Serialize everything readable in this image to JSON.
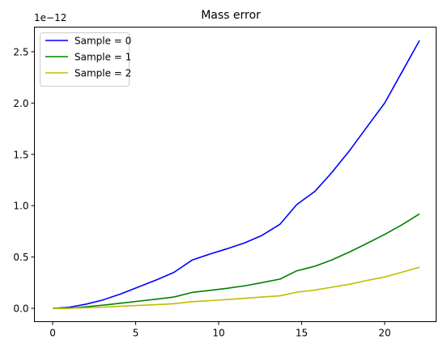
{
  "chart_data": {
    "type": "line",
    "title": "Mass error",
    "xlabel": "",
    "ylabel": "",
    "offset_text": "1e−12",
    "xlim": [
      -1.1,
      23.1
    ],
    "ylim": [
      -0.13,
      2.74
    ],
    "x_ticks": [
      0,
      5,
      10,
      15,
      20
    ],
    "x_tick_labels": [
      "0",
      "5",
      "10",
      "15",
      "20"
    ],
    "y_ticks": [
      0.0,
      0.5,
      1.0,
      1.5,
      2.0,
      2.5
    ],
    "y_tick_labels": [
      "0.0",
      "0.5",
      "1.0",
      "1.5",
      "2.0",
      "2.5"
    ],
    "grid": false,
    "legend_position": "upper-left",
    "x": [
      0,
      1,
      2,
      3,
      4.1,
      5.2,
      6.3,
      7.3,
      8.4,
      9.5,
      10.5,
      11.6,
      12.6,
      13.7,
      14.7,
      15.8,
      16.8,
      17.9,
      18.9,
      20.0,
      21.0,
      22.1
    ],
    "series": [
      {
        "name": "Sample = 0",
        "color": "#0000ff",
        "values": [
          0.0,
          0.01,
          0.04,
          0.08,
          0.14,
          0.21,
          0.28,
          0.35,
          0.47,
          0.53,
          0.58,
          0.64,
          0.71,
          0.82,
          1.01,
          1.14,
          1.32,
          1.54,
          1.76,
          2.0,
          2.29,
          2.61
        ]
      },
      {
        "name": "Sample = 1",
        "color": "#008000",
        "values": [
          0.0,
          0.0,
          0.015,
          0.03,
          0.05,
          0.07,
          0.09,
          0.11,
          0.155,
          0.175,
          0.195,
          0.22,
          0.25,
          0.285,
          0.365,
          0.41,
          0.47,
          0.55,
          0.63,
          0.72,
          0.81,
          0.92
        ]
      },
      {
        "name": "Sample = 2",
        "color": "#bfbf00",
        "values": [
          0.0,
          0.0,
          0.005,
          0.01,
          0.02,
          0.028,
          0.036,
          0.045,
          0.065,
          0.075,
          0.085,
          0.098,
          0.11,
          0.122,
          0.157,
          0.178,
          0.205,
          0.235,
          0.27,
          0.305,
          0.35,
          0.4
        ]
      }
    ]
  }
}
